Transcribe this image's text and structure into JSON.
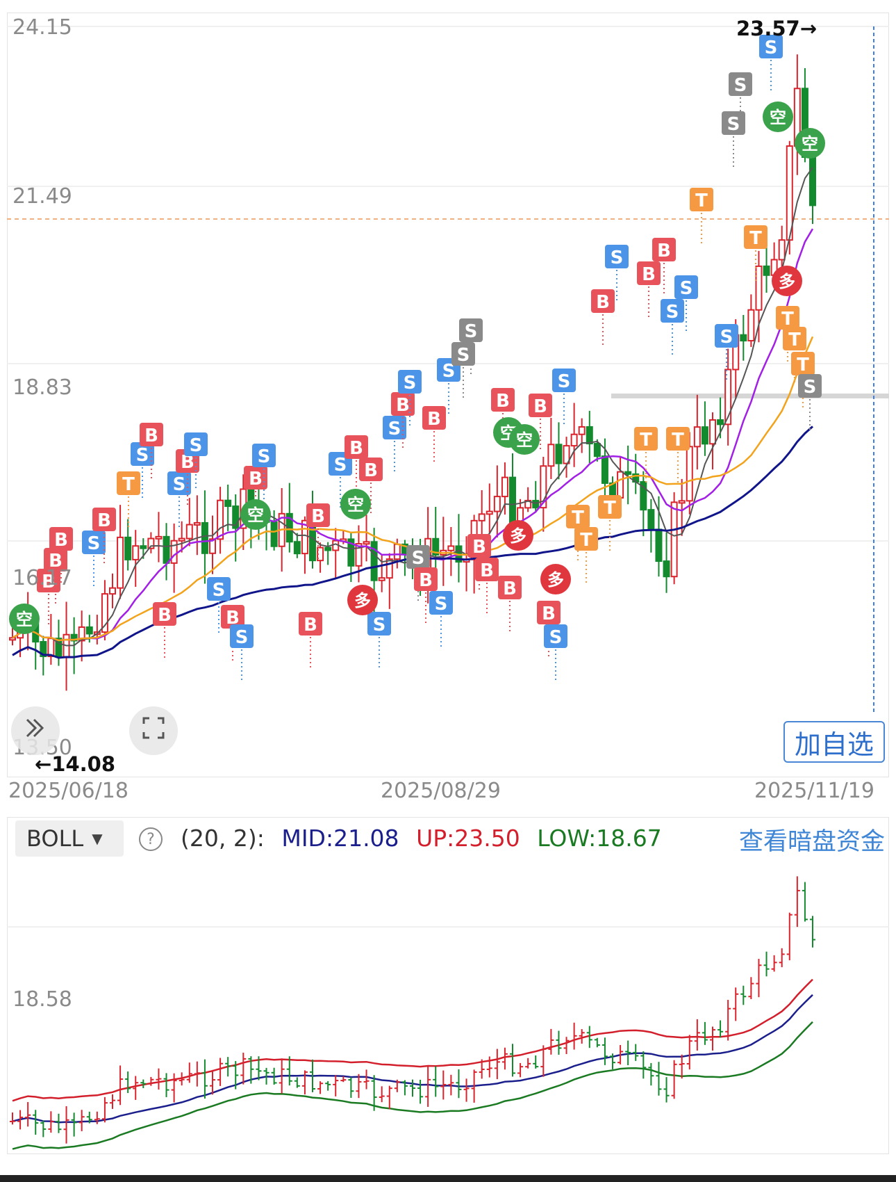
{
  "main_chart": {
    "price_labels": [
      "24.15",
      "21.49",
      "18.83",
      "16.17",
      "13.50"
    ],
    "date_labels": [
      "2025/06/18",
      "2025/08/29",
      "2025/11/19"
    ],
    "high_marker": "23.57→",
    "low_marker": "←14.08",
    "add_watch_label": "加自选",
    "signal_text": {
      "buy": "B",
      "sell": "S",
      "take": "T",
      "long": "多",
      "short": "空"
    },
    "colors": {
      "up": "#d9232d",
      "down": "#138a2e",
      "ma5": "#555555",
      "ma10": "#a21fe6",
      "ma20": "#f2a31b",
      "ma60": "#10158a",
      "buy": "#e8535b",
      "sell": "#4c94e8",
      "take": "#f59a43",
      "long": "#e0363e",
      "short": "#3aa24a",
      "gray": "#8a8a8a"
    }
  },
  "indicator": {
    "name": "BOLL",
    "params": "(20, 2):",
    "mid": "MID:21.08",
    "up": "UP:23.50",
    "low": "LOW:18.67",
    "price_label": "18.58",
    "dark_pool_link": "查看暗盘资金",
    "colors": {
      "mid": "#1b1f8c",
      "up": "#d21f2b",
      "low": "#1a7a22"
    }
  }
}
